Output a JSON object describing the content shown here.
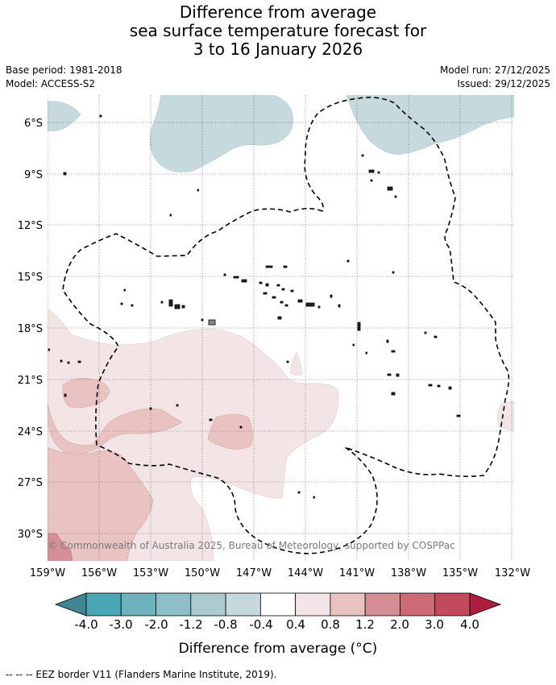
{
  "title": {
    "line1": "Difference from average",
    "line2": "sea surface temperature forecast for",
    "line3": "3 to 16 January 2026"
  },
  "meta": {
    "base_period": "Base period: 1981-2018",
    "model": "Model: ACCESS-S2",
    "model_run": "Model run: 27/12/2025",
    "issued": "Issued: 29/12/2025"
  },
  "map": {
    "lat_labels": [
      "6°S",
      "9°S",
      "12°S",
      "15°S",
      "18°S",
      "21°S",
      "24°S",
      "27°S",
      "30°S"
    ],
    "lon_labels": [
      "159°W",
      "156°W",
      "153°W",
      "150°W",
      "147°W",
      "144°W",
      "141°W",
      "138°W",
      "135°W",
      "132°W"
    ],
    "copyright": "© Commonwealth of Australia 2025, Bureau of Meteorology, supported by COSPPac"
  },
  "colorbar": {
    "colors": [
      "#3f8592",
      "#4aa5b5",
      "#6eb1bf",
      "#8ebfc8",
      "#abcbd1",
      "#c6d9dd",
      "#ffffff",
      "#f3e5e5",
      "#e8c3c2",
      "#d58e94",
      "#cc6b77",
      "#c34a5c",
      "#b01e3f"
    ],
    "tick_labels": [
      "-4.0",
      "-3.0",
      "-2.0",
      "-1.2",
      "-0.8",
      "-0.4",
      "0.4",
      "0.8",
      "1.2",
      "2.0",
      "3.0",
      "4.0"
    ],
    "title": "Difference from average (°C)"
  },
  "legend_note": "--  --  -- EEZ border V11 (Flanders Marine Institute, 2019)."
}
